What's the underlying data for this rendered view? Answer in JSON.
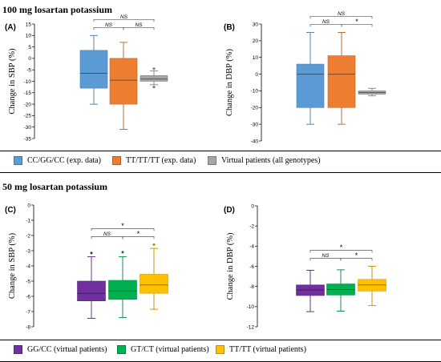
{
  "sections": {
    "top_title": "100 mg losartan potassium",
    "bottom_title": "50 mg losartan potassium"
  },
  "colors": {
    "blue": "#5b9bd5",
    "orange": "#ed7d31",
    "gray": "#a5a5a5",
    "purple": "#7030a0",
    "green": "#00b050",
    "yellow": "#ffc000"
  },
  "legends": {
    "top": [
      {
        "label": "CC/GG/CC (exp. data)",
        "color": "#5b9bd5"
      },
      {
        "label": "TT/TT/TT (exp. data)",
        "color": "#ed7d31"
      },
      {
        "label": "Virtual patients (all genotypes)",
        "color": "#a5a5a5"
      }
    ],
    "bottom": [
      {
        "label": "GG/CC (virtual patients)",
        "color": "#7030a0"
      },
      {
        "label": "GT/CT (virtual patients)",
        "color": "#00b050"
      },
      {
        "label": "TT/TT (virtual patients)",
        "color": "#ffc000"
      }
    ]
  },
  "chart_data": [
    {
      "panel": "(A)",
      "type": "box",
      "ylabel": "Change in SBP (%)",
      "ylim": [
        -35,
        15
      ],
      "yticks": [
        15,
        10,
        5,
        0,
        -5,
        -10,
        -15,
        -20,
        -25,
        -30,
        -35
      ],
      "boxes": [
        {
          "color": "#5b9bd5",
          "whisker_low": -20,
          "q1": -13,
          "median": -6.5,
          "q3": 3.5,
          "whisker_high": 10,
          "outliers": []
        },
        {
          "color": "#ed7d31",
          "whisker_low": -31,
          "q1": -20,
          "median": -9.5,
          "q3": 0,
          "whisker_high": 7,
          "outliers": []
        },
        {
          "color": "#a5a5a5",
          "whisker_low": -11.5,
          "q1": -10,
          "median": -9,
          "q3": -7.5,
          "whisker_high": -5.5,
          "outliers": [
            -12.5,
            -4.5
          ]
        }
      ],
      "brackets": [
        {
          "from": 0,
          "to": 2,
          "label": "NS",
          "level": 2
        },
        {
          "from": 0,
          "to": 1,
          "label": "NS",
          "level": 1
        },
        {
          "from": 1,
          "to": 2,
          "label": "NS",
          "level": 1
        }
      ]
    },
    {
      "panel": "(B)",
      "type": "box",
      "ylabel": "Change in DBP (%)",
      "ylim": [
        -40,
        30
      ],
      "yticks": [
        30,
        20,
        10,
        0,
        -10,
        -20,
        -30,
        -40
      ],
      "boxes": [
        {
          "color": "#5b9bd5",
          "whisker_low": -30,
          "q1": -20,
          "median": 0,
          "q3": 6,
          "whisker_high": 25,
          "outliers": []
        },
        {
          "color": "#ed7d31",
          "whisker_low": -30,
          "q1": -20,
          "median": 0,
          "q3": 11,
          "whisker_high": 25,
          "outliers": []
        },
        {
          "color": "#a5a5a5",
          "whisker_low": -13,
          "q1": -12,
          "median": -11,
          "q3": -10,
          "whisker_high": -8.5,
          "outliers": []
        }
      ],
      "brackets": [
        {
          "from": 0,
          "to": 2,
          "label": "NS",
          "level": 2
        },
        {
          "from": 0,
          "to": 1,
          "label": "NS",
          "level": 1
        },
        {
          "from": 1,
          "to": 2,
          "label": "*",
          "level": 1
        }
      ]
    },
    {
      "panel": "(C)",
      "type": "box",
      "ylabel": "Change in SBP (%)",
      "ylim": [
        -8,
        0
      ],
      "yticks": [
        0,
        -1,
        -2,
        -3,
        -4,
        -5,
        -6,
        -7,
        -8
      ],
      "boxes": [
        {
          "color": "#7030a0",
          "whisker_low": -7.45,
          "q1": -6.3,
          "median": -5.8,
          "q3": -5.0,
          "whisker_high": -3.4,
          "outliers": [
            -3.15
          ]
        },
        {
          "color": "#00b050",
          "whisker_low": -7.4,
          "q1": -6.2,
          "median": -5.65,
          "q3": -4.95,
          "whisker_high": -3.4,
          "outliers": [
            -3.1
          ]
        },
        {
          "color": "#ffc000",
          "whisker_low": -6.85,
          "q1": -5.8,
          "median": -5.25,
          "q3": -4.55,
          "whisker_high": -2.85,
          "outliers": [
            -2.6
          ]
        }
      ],
      "brackets": [
        {
          "from": 0,
          "to": 2,
          "label": "*",
          "level": 2
        },
        {
          "from": 0,
          "to": 1,
          "label": "NS",
          "level": 1
        },
        {
          "from": 1,
          "to": 2,
          "label": "*",
          "level": 1
        }
      ]
    },
    {
      "panel": "(D)",
      "type": "box",
      "ylabel": "Change in DBP (%)",
      "ylim": [
        -12,
        0
      ],
      "yticks": [
        0,
        -2,
        -4,
        -6,
        -8,
        -10,
        -12
      ],
      "boxes": [
        {
          "color": "#7030a0",
          "whisker_low": -10.5,
          "q1": -8.9,
          "median": -8.35,
          "q3": -7.85,
          "whisker_high": -6.4,
          "outliers": []
        },
        {
          "color": "#00b050",
          "whisker_low": -10.45,
          "q1": -8.85,
          "median": -8.3,
          "q3": -7.75,
          "whisker_high": -6.35,
          "outliers": []
        },
        {
          "color": "#ffc000",
          "whisker_low": -9.9,
          "q1": -8.45,
          "median": -7.85,
          "q3": -7.3,
          "whisker_high": -6.0,
          "outliers": []
        }
      ],
      "brackets": [
        {
          "from": 0,
          "to": 2,
          "label": "*",
          "level": 2
        },
        {
          "from": 0,
          "to": 1,
          "label": "NS",
          "level": 1
        },
        {
          "from": 1,
          "to": 2,
          "label": "*",
          "level": 1
        }
      ]
    }
  ]
}
